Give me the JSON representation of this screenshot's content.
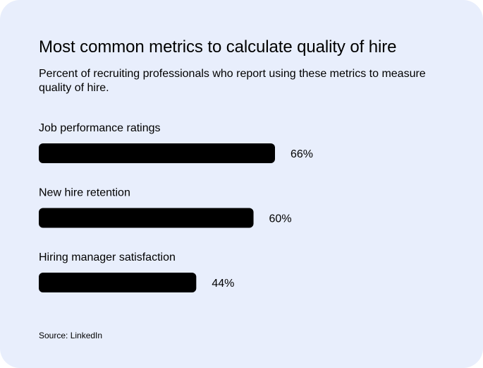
{
  "colors": {
    "card_background": "#e8eefc",
    "bar": "#000000",
    "text": "#000000"
  },
  "header": {
    "title": "Most common metrics to calculate quality of hire",
    "subtitle": "Percent of recruiting professionals who report using these metrics to measure quality of hire."
  },
  "footer": {
    "source": "Source: LinkedIn"
  },
  "chart_data": {
    "type": "bar",
    "orientation": "horizontal",
    "categories": [
      "Job performance ratings",
      "New hire retention",
      "Hiring manager satisfaction"
    ],
    "values": [
      66,
      60,
      44
    ],
    "value_labels": [
      "66%",
      "60%",
      "44%"
    ],
    "unit": "%",
    "xlim": [
      0,
      100
    ],
    "grid": false,
    "legend": "none",
    "xlabel": "",
    "ylabel": ""
  }
}
